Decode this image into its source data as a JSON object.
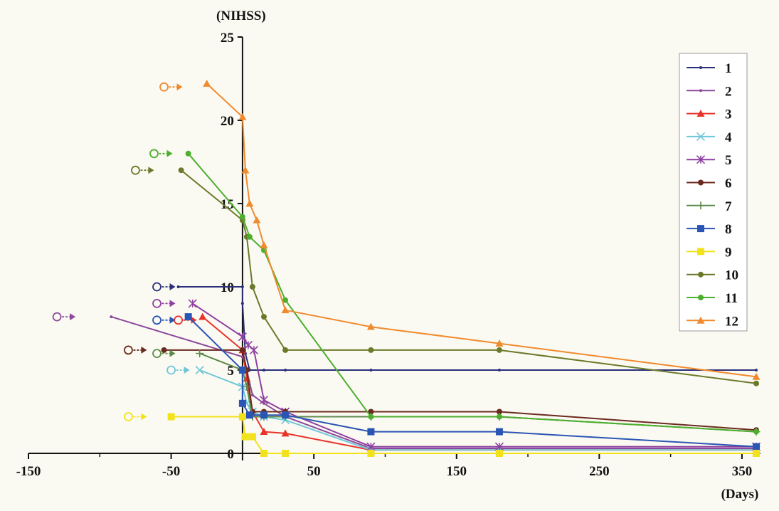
{
  "chart_data": {
    "type": "line",
    "xlabel": "(Days)",
    "ylabel": "(NIHSS)",
    "xlim": [
      -150,
      360
    ],
    "ylim": [
      0,
      25
    ],
    "x_ticks": [
      "-150",
      "-50",
      "50",
      "150",
      "250",
      "350"
    ],
    "x_tick_values": [
      -150,
      -50,
      50,
      150,
      250,
      350
    ],
    "y_ticks": [
      "0",
      "5",
      "10",
      "15",
      "20",
      "25"
    ],
    "y_tick_values": [
      0,
      5,
      10,
      15,
      20,
      25
    ],
    "legend_position": "top-right",
    "grid": false,
    "annotations": "Open circle with arrow marks onset point for each series",
    "series": [
      {
        "name": "1",
        "color": "#2a2f7a",
        "marker": "dot",
        "onset": [
          -60,
          10
        ],
        "points": [
          [
            -45,
            10
          ],
          [
            0,
            10
          ],
          [
            0,
            9
          ],
          [
            2,
            6
          ],
          [
            5,
            5
          ],
          [
            15,
            5
          ],
          [
            30,
            5
          ],
          [
            90,
            5
          ],
          [
            180,
            5
          ],
          [
            360,
            5
          ]
        ]
      },
      {
        "name": "2",
        "color": "#8b4a9c",
        "marker": "dot",
        "onset": [
          -130,
          8.2
        ],
        "points": [
          [
            -92,
            8.2
          ],
          [
            0,
            5.8
          ],
          [
            3,
            5
          ],
          [
            7,
            3.5
          ],
          [
            15,
            3
          ],
          [
            30,
            2.2
          ],
          [
            90,
            0.3
          ],
          [
            180,
            0.3
          ],
          [
            360,
            0.3
          ]
        ]
      },
      {
        "name": "3",
        "color": "#e8332a",
        "marker": "triangle",
        "onset": [
          -45,
          8
        ],
        "points": [
          [
            -28,
            8.2
          ],
          [
            0,
            6.2
          ],
          [
            3,
            4.5
          ],
          [
            7,
            2.5
          ],
          [
            15,
            1.3
          ],
          [
            30,
            1.2
          ],
          [
            90,
            0.2
          ],
          [
            180,
            0.2
          ],
          [
            360,
            0.2
          ]
        ]
      },
      {
        "name": "4",
        "color": "#6ec7d8",
        "marker": "x",
        "onset": [
          -50,
          5
        ],
        "points": [
          [
            -30,
            5
          ],
          [
            0,
            4
          ],
          [
            3,
            3
          ],
          [
            7,
            2.5
          ],
          [
            15,
            2.2
          ],
          [
            30,
            2
          ],
          [
            90,
            0.2
          ],
          [
            180,
            0.2
          ],
          [
            360,
            0.2
          ]
        ]
      },
      {
        "name": "5",
        "color": "#8e3fa0",
        "marker": "star",
        "onset": [
          -60,
          9
        ],
        "points": [
          [
            -35,
            9
          ],
          [
            0,
            7
          ],
          [
            4,
            6.5
          ],
          [
            8,
            6.2
          ],
          [
            15,
            3.2
          ],
          [
            30,
            2.5
          ],
          [
            90,
            0.4
          ],
          [
            180,
            0.4
          ],
          [
            360,
            0.4
          ]
        ]
      },
      {
        "name": "6",
        "color": "#6b2a1f",
        "marker": "circle",
        "onset": [
          -80,
          6.2
        ],
        "points": [
          [
            -55,
            6.2
          ],
          [
            0,
            6.2
          ],
          [
            3,
            5
          ],
          [
            7,
            2.5
          ],
          [
            15,
            2.5
          ],
          [
            30,
            2.5
          ],
          [
            90,
            2.5
          ],
          [
            180,
            2.5
          ],
          [
            360,
            1.4
          ]
        ]
      },
      {
        "name": "7",
        "color": "#5c8a4a",
        "marker": "plus",
        "onset": [
          -60,
          6
        ],
        "points": [
          [
            -30,
            6
          ],
          [
            0,
            5
          ],
          [
            3,
            4
          ],
          [
            7,
            2.2
          ],
          [
            15,
            2.2
          ],
          [
            30,
            2.2
          ],
          [
            90,
            2.2
          ],
          [
            180,
            2.2
          ],
          [
            360,
            1.3
          ]
        ]
      },
      {
        "name": "8",
        "color": "#2b55b5",
        "marker": "square",
        "onset": [
          -60,
          8
        ],
        "points": [
          [
            -38,
            8.2
          ],
          [
            0,
            5
          ],
          [
            0,
            3
          ],
          [
            5,
            2.3
          ],
          [
            15,
            2.3
          ],
          [
            30,
            2.3
          ],
          [
            90,
            1.3
          ],
          [
            180,
            1.3
          ],
          [
            360,
            0.4
          ]
        ]
      },
      {
        "name": "9",
        "color": "#f2e21c",
        "marker": "square",
        "onset": [
          -80,
          2.2
        ],
        "points": [
          [
            -50,
            2.2
          ],
          [
            0,
            2.2
          ],
          [
            2,
            1
          ],
          [
            7,
            1
          ],
          [
            15,
            0
          ],
          [
            30,
            0
          ],
          [
            90,
            0
          ],
          [
            180,
            0
          ],
          [
            360,
            0
          ]
        ]
      },
      {
        "name": "10",
        "color": "#6b7a2a",
        "marker": "circle",
        "onset": [
          -75,
          17
        ],
        "points": [
          [
            -43,
            17
          ],
          [
            0,
            14
          ],
          [
            3,
            13
          ],
          [
            7,
            10
          ],
          [
            15,
            8.2
          ],
          [
            30,
            6.2
          ],
          [
            90,
            6.2
          ],
          [
            180,
            6.2
          ],
          [
            360,
            4.2
          ]
        ]
      },
      {
        "name": "11",
        "color": "#4caf2e",
        "marker": "circle",
        "onset": [
          -62,
          18
        ],
        "points": [
          [
            -38,
            18
          ],
          [
            0,
            14.2
          ],
          [
            5,
            13
          ],
          [
            15,
            12.2
          ],
          [
            30,
            9.2
          ],
          [
            90,
            2.2
          ],
          [
            180,
            2.2
          ],
          [
            360,
            1.3
          ]
        ]
      },
      {
        "name": "12",
        "color": "#f08a2e",
        "marker": "triangle",
        "onset": [
          -55,
          22
        ],
        "points": [
          [
            -25,
            22.2
          ],
          [
            0,
            20.2
          ],
          [
            2,
            17
          ],
          [
            5,
            15
          ],
          [
            10,
            14
          ],
          [
            15,
            12.5
          ],
          [
            30,
            8.6
          ],
          [
            90,
            7.6
          ],
          [
            180,
            6.6
          ],
          [
            360,
            4.6
          ]
        ]
      }
    ]
  }
}
